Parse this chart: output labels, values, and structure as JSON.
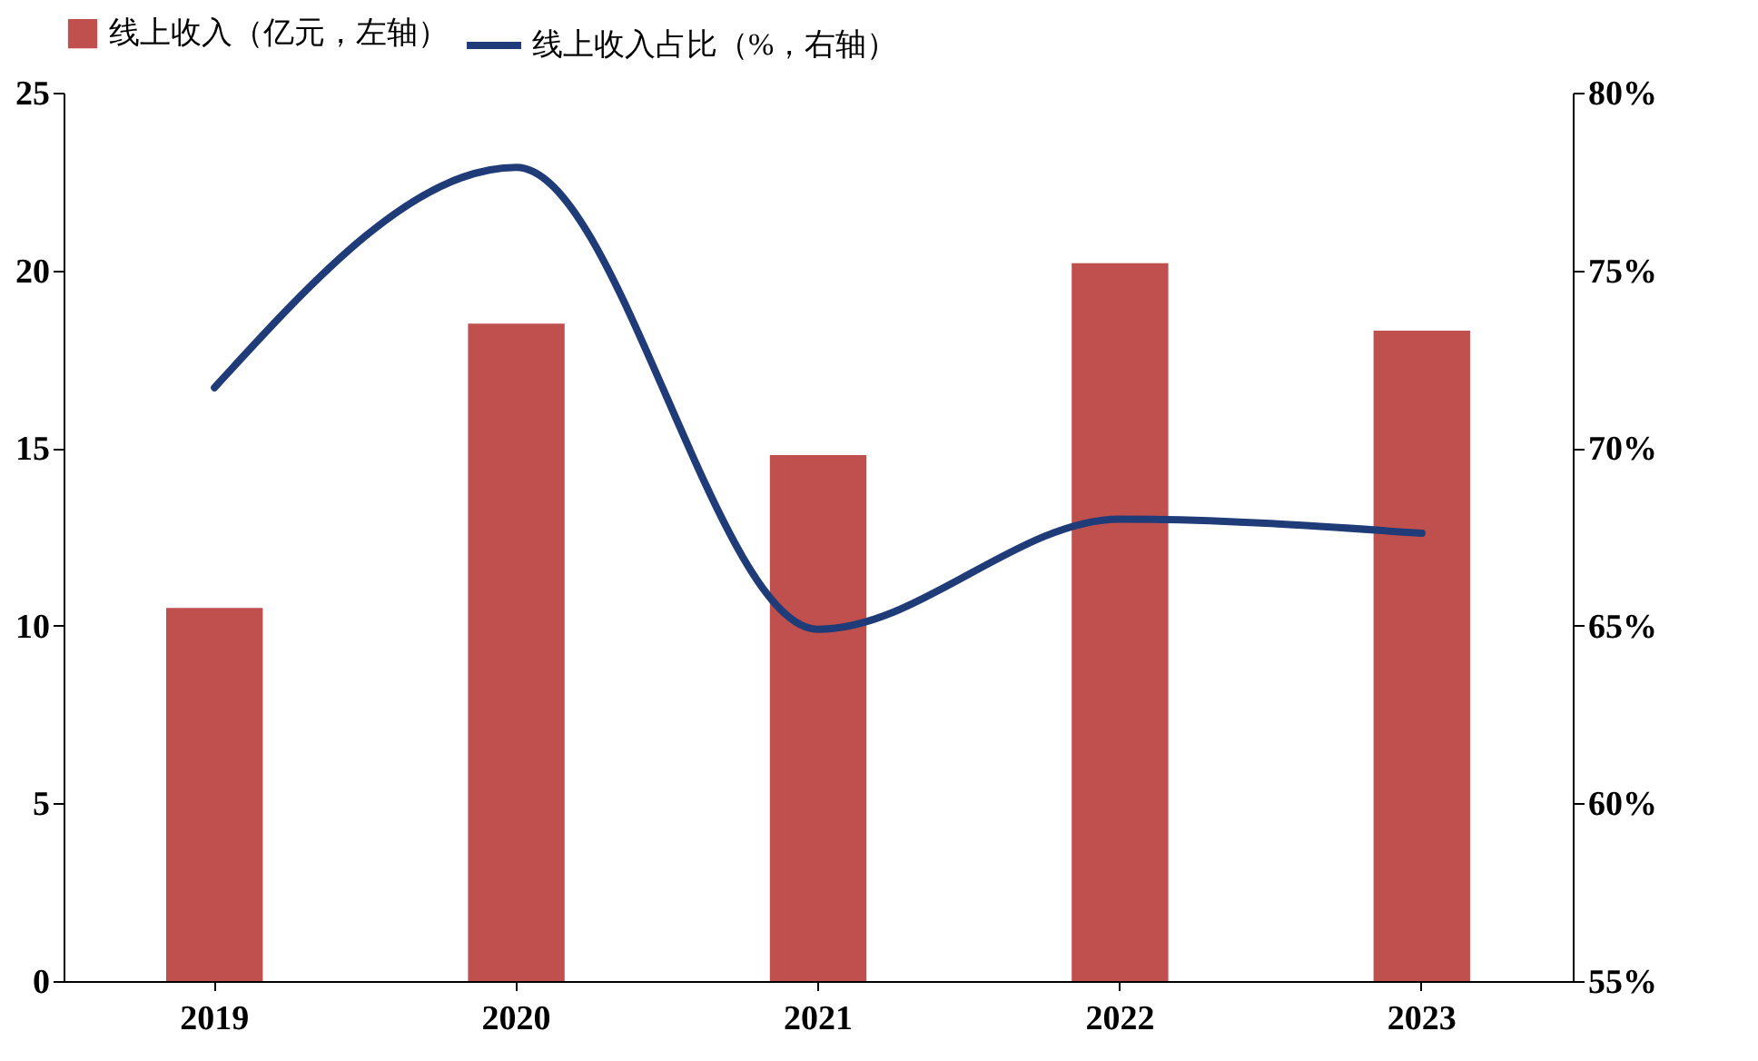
{
  "chart_data": {
    "type": "bar",
    "categories": [
      "2019",
      "2020",
      "2021",
      "2022",
      "2023"
    ],
    "series": [
      {
        "name": "线上收入（亿元，左轴）",
        "color": "#c0504d",
        "values": [
          10.5,
          18.5,
          14.8,
          20.2,
          18.3
        ]
      },
      {
        "name": "线上收入占比（%，右轴）",
        "type": "line",
        "axis": "y2",
        "color": "#1f3b78",
        "values": [
          71.7,
          77.9,
          64.9,
          68.0,
          67.6
        ]
      }
    ],
    "ylim": [
      0,
      25
    ],
    "yticks": [
      0,
      5,
      10,
      15,
      20,
      25
    ],
    "y2lim": [
      55,
      80
    ],
    "y2ticks": [
      {
        "value": 55,
        "label": "55%"
      },
      {
        "value": 60,
        "label": "60%"
      },
      {
        "value": 65,
        "label": "65%"
      },
      {
        "value": 70,
        "label": "70%"
      },
      {
        "value": 75,
        "label": "75%"
      },
      {
        "value": 80,
        "label": "80%"
      }
    ],
    "legend": "top",
    "grid": false,
    "marker": "none",
    "line_style": "solid"
  }
}
